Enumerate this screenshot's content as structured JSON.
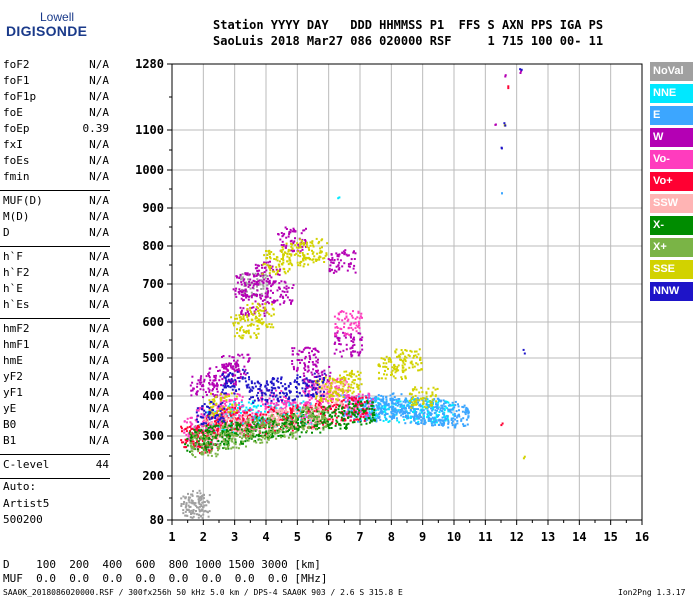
{
  "logo": {
    "line1": "Lowell",
    "line2": "DIGISONDE"
  },
  "header": {
    "row1": "Station YYYY DAY   DDD HHMMSS P1  FFS S AXN PPS IGA PS",
    "row2": "SaoLuis 2018 Mar27 086 020000 RSF     1 715 100 00- 11"
  },
  "params": [
    [
      {
        "name": "foF2",
        "value": "N/A"
      },
      {
        "name": "foF1",
        "value": "N/A"
      },
      {
        "name": "foF1p",
        "value": "N/A"
      },
      {
        "name": "foE",
        "value": "N/A"
      },
      {
        "name": "foEp",
        "value": "0.39"
      },
      {
        "name": "fxI",
        "value": "N/A"
      },
      {
        "name": "foEs",
        "value": "N/A"
      },
      {
        "name": "fmin",
        "value": "N/A"
      }
    ],
    [
      {
        "name": "MUF(D)",
        "value": "N/A"
      },
      {
        "name": "M(D)",
        "value": "N/A"
      },
      {
        "name": "D",
        "value": "N/A"
      }
    ],
    [
      {
        "name": "h`F",
        "value": "N/A"
      },
      {
        "name": "h`F2",
        "value": "N/A"
      },
      {
        "name": "h`E",
        "value": "N/A"
      },
      {
        "name": "h`Es",
        "value": "N/A"
      }
    ],
    [
      {
        "name": "hmF2",
        "value": "N/A"
      },
      {
        "name": "hmF1",
        "value": "N/A"
      },
      {
        "name": "hmE",
        "value": "N/A"
      },
      {
        "name": "yF2",
        "value": "N/A"
      },
      {
        "name": "yF1",
        "value": "N/A"
      },
      {
        "name": "yE",
        "value": "N/A"
      },
      {
        "name": "B0",
        "value": "N/A"
      },
      {
        "name": "B1",
        "value": "N/A"
      }
    ],
    [
      {
        "name": "C-level",
        "value": "44"
      }
    ]
  ],
  "auto": {
    "line1": "Auto:",
    "line2": "Artist5",
    "line3": "500200"
  },
  "legend": [
    {
      "label": "NoVal",
      "color": "#a0a0a0"
    },
    {
      "label": "NNE",
      "color": "#00e8ff"
    },
    {
      "label": "E",
      "color": "#3ca6ff"
    },
    {
      "label": "W",
      "color": "#b400b4"
    },
    {
      "label": "Vo-",
      "color": "#ff3cbe"
    },
    {
      "label": "Vo+",
      "color": "#ff0032"
    },
    {
      "label": "SSW",
      "color": "#ffb4b4"
    },
    {
      "label": "X-",
      "color": "#008c00"
    },
    {
      "label": "X+",
      "color": "#7ab446"
    },
    {
      "label": "SSE",
      "color": "#d2d200"
    },
    {
      "label": "NNW",
      "color": "#1e14c8"
    }
  ],
  "bottom": {
    "d_row": "D    100  200  400  600  800 1000 1500 3000 [km]",
    "muf_row": "MUF  0.0  0.0  0.0  0.0  0.0  0.0  0.0  0.0 [MHz]",
    "footer_left": "SAA0K_2018086020000.RSF / 300fx256h 50 kHz 5.0 km / DPS-4 SAA0K 903 / 2.6 S 315.8 E",
    "footer_right": "Ion2Png 1.3.17"
  },
  "chart_data": {
    "type": "scatter",
    "title": "",
    "xlabel": "",
    "ylabel": "",
    "xlim": [
      1,
      16
    ],
    "ylim": [
      80,
      1280
    ],
    "x_ticks": [
      1,
      2,
      3,
      4,
      5,
      6,
      7,
      8,
      9,
      10,
      11,
      12,
      13,
      14,
      15,
      16
    ],
    "y_ticks": [
      80,
      200,
      300,
      400,
      500,
      600,
      700,
      800,
      900,
      1000,
      1100,
      1280
    ],
    "grid": true,
    "legend_placement": "right",
    "series": [
      {
        "label_ref": "NoVal",
        "color": "#a0a0a0",
        "points": [
          [
            1.7,
            130
          ],
          [
            1.75,
            120
          ],
          [
            2.0,
            300
          ],
          [
            3.6,
            700
          ]
        ]
      },
      {
        "label_ref": "NNE",
        "color": "#00e8ff",
        "points": [
          [
            2.5,
            340
          ],
          [
            3.2,
            360
          ],
          [
            4.1,
            350
          ],
          [
            5.0,
            360
          ],
          [
            6.3,
            930
          ],
          [
            7.4,
            370
          ],
          [
            8.1,
            365
          ],
          [
            9.0,
            365
          ],
          [
            9.5,
            360
          ]
        ]
      },
      {
        "label_ref": "E",
        "color": "#3ca6ff",
        "points": [
          [
            6.8,
            375
          ],
          [
            7.2,
            368
          ],
          [
            7.6,
            372
          ],
          [
            8.0,
            380
          ],
          [
            8.4,
            370
          ],
          [
            8.8,
            362
          ],
          [
            9.2,
            368
          ],
          [
            9.6,
            358
          ],
          [
            10.0,
            352
          ],
          [
            11.5,
            940
          ]
        ]
      },
      {
        "label_ref": "W",
        "color": "#b400b4",
        "points": [
          [
            2.0,
            430
          ],
          [
            2.6,
            460
          ],
          [
            3.0,
            480
          ],
          [
            3.3,
            700
          ],
          [
            3.6,
            650
          ],
          [
            4.0,
            730
          ],
          [
            4.4,
            680
          ],
          [
            4.8,
            820
          ],
          [
            5.2,
            500
          ],
          [
            5.6,
            450
          ],
          [
            6.4,
            760
          ],
          [
            6.6,
            540
          ],
          [
            11.3,
            1120
          ],
          [
            11.6,
            1250
          ],
          [
            12.1,
            1260
          ]
        ]
      },
      {
        "label_ref": "Vo-",
        "color": "#ff3cbe",
        "points": [
          [
            1.8,
            320
          ],
          [
            2.2,
            350
          ],
          [
            2.8,
            380
          ],
          [
            3.4,
            340
          ],
          [
            4.2,
            390
          ],
          [
            5.0,
            360
          ],
          [
            5.6,
            400
          ],
          [
            6.2,
            420
          ],
          [
            6.6,
            600
          ],
          [
            7.0,
            380
          ]
        ]
      },
      {
        "label_ref": "Vo+",
        "color": "#ff0032",
        "points": [
          [
            1.7,
            300
          ],
          [
            2.0,
            290
          ],
          [
            2.5,
            330
          ],
          [
            3.0,
            345
          ],
          [
            3.6,
            330
          ],
          [
            4.4,
            345
          ],
          [
            5.2,
            350
          ],
          [
            6.0,
            360
          ],
          [
            6.8,
            370
          ],
          [
            11.5,
            330
          ],
          [
            11.7,
            1220
          ]
        ]
      },
      {
        "label_ref": "SSW",
        "color": "#ffb4b4",
        "points": [
          [
            2.3,
            320
          ],
          [
            3.1,
            330
          ],
          [
            4.5,
            340
          ],
          [
            5.3,
            350
          ],
          [
            6.1,
            410
          ]
        ]
      },
      {
        "label_ref": "X-",
        "color": "#008c00",
        "points": [
          [
            1.8,
            290
          ],
          [
            2.4,
            300
          ],
          [
            3.0,
            310
          ],
          [
            3.8,
            320
          ],
          [
            4.6,
            330
          ],
          [
            5.4,
            340
          ],
          [
            6.2,
            350
          ],
          [
            7.0,
            360
          ]
        ]
      },
      {
        "label_ref": "X+",
        "color": "#7ab446",
        "points": [
          [
            2.0,
            280
          ],
          [
            2.9,
            300
          ],
          [
            3.7,
            315
          ],
          [
            4.5,
            325
          ],
          [
            5.5,
            345
          ]
        ]
      },
      {
        "label_ref": "SSE",
        "color": "#d2d200",
        "points": [
          [
            2.6,
            380
          ],
          [
            3.3,
            590
          ],
          [
            3.8,
            620
          ],
          [
            4.3,
            760
          ],
          [
            4.9,
            780
          ],
          [
            5.5,
            790
          ],
          [
            6.0,
            420
          ],
          [
            6.6,
            440
          ],
          [
            8.0,
            475
          ],
          [
            8.5,
            495
          ],
          [
            9.0,
            400
          ],
          [
            11.6,
            1120
          ],
          [
            12.2,
            250
          ]
        ]
      },
      {
        "label_ref": "NNW",
        "color": "#1e14c8",
        "points": [
          [
            2.2,
            360
          ],
          [
            3.0,
            440
          ],
          [
            3.8,
            410
          ],
          [
            4.6,
            420
          ],
          [
            5.4,
            430
          ],
          [
            11.5,
            1060
          ],
          [
            11.6,
            1120
          ],
          [
            12.1,
            1270
          ],
          [
            12.2,
            520
          ]
        ]
      }
    ]
  }
}
